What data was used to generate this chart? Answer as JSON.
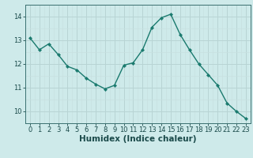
{
  "x": [
    0,
    1,
    2,
    3,
    4,
    5,
    6,
    7,
    8,
    9,
    10,
    11,
    12,
    13,
    14,
    15,
    16,
    17,
    18,
    19,
    20,
    21,
    22,
    23
  ],
  "y": [
    13.1,
    12.6,
    12.85,
    12.4,
    11.9,
    11.75,
    11.4,
    11.15,
    10.95,
    11.1,
    11.95,
    12.05,
    12.6,
    13.55,
    13.95,
    14.1,
    13.25,
    12.6,
    12.0,
    11.55,
    11.1,
    10.35,
    10.0,
    9.7
  ],
  "line_color": "#1a7a6e",
  "marker": "D",
  "marker_size": 2.2,
  "bg_color": "#ceeaea",
  "grid_major_color": "#b8d4d4",
  "grid_minor_color": "#c8e0e0",
  "xlabel": "Humidex (Indice chaleur)",
  "ylim": [
    9.5,
    14.5
  ],
  "xlim": [
    -0.5,
    23.5
  ],
  "yticks": [
    10,
    11,
    12,
    13,
    14
  ],
  "xticks": [
    0,
    1,
    2,
    3,
    4,
    5,
    6,
    7,
    8,
    9,
    10,
    11,
    12,
    13,
    14,
    15,
    16,
    17,
    18,
    19,
    20,
    21,
    22,
    23
  ],
  "tick_fontsize": 6.0,
  "xlabel_fontsize": 7.5,
  "spine_color": "#3a7070"
}
